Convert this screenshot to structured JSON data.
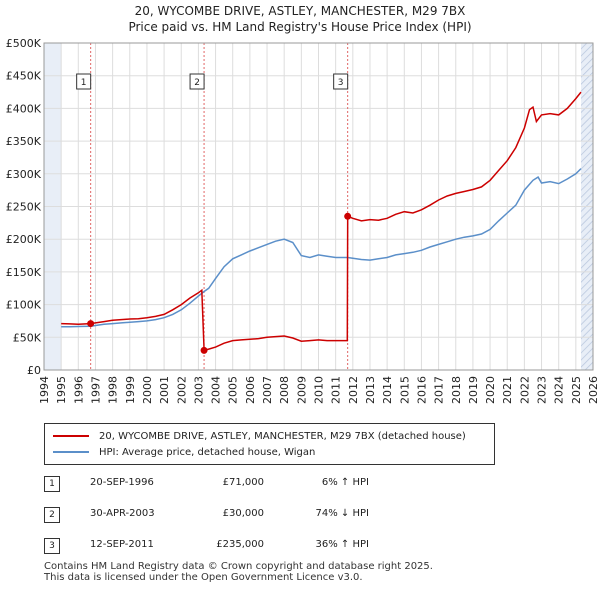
{
  "title": "20, WYCOMBE DRIVE, ASTLEY, MANCHESTER, M29 7BX",
  "subtitle": "Price paid vs. HM Land Registry's House Price Index (HPI)",
  "chart_data": {
    "type": "line",
    "x_range": [
      1994,
      2026
    ],
    "ylim": [
      0,
      500000
    ],
    "y_ticks": [
      {
        "value": 0,
        "label": "£0"
      },
      {
        "value": 50000,
        "label": "£50K"
      },
      {
        "value": 100000,
        "label": "£100K"
      },
      {
        "value": 150000,
        "label": "£150K"
      },
      {
        "value": 200000,
        "label": "£200K"
      },
      {
        "value": 250000,
        "label": "£250K"
      },
      {
        "value": 300000,
        "label": "£300K"
      },
      {
        "value": 350000,
        "label": "£350K"
      },
      {
        "value": 400000,
        "label": "£400K"
      },
      {
        "value": 450000,
        "label": "£450K"
      },
      {
        "value": 500000,
        "label": "£500K"
      }
    ],
    "x_ticks": [
      "1994",
      "1995",
      "1996",
      "1997",
      "1998",
      "1999",
      "2000",
      "2001",
      "2002",
      "2003",
      "2004",
      "2005",
      "2006",
      "2007",
      "2008",
      "2009",
      "2010",
      "2011",
      "2012",
      "2013",
      "2014",
      "2015",
      "2016",
      "2017",
      "2018",
      "2019",
      "2020",
      "2021",
      "2022",
      "2023",
      "2024",
      "2025",
      "2026"
    ],
    "data_start": 1995.0,
    "data_end": 2025.3,
    "series": [
      {
        "name": "20, WYCOMBE DRIVE, ASTLEY, MANCHESTER, M29 7BX (detached house)",
        "color": "#cc0000",
        "points": [
          [
            1995.0,
            71000
          ],
          [
            1995.5,
            70500
          ],
          [
            1996.0,
            70000
          ],
          [
            1996.72,
            71000
          ],
          [
            1997.0,
            72000
          ],
          [
            1997.5,
            74000
          ],
          [
            1998.0,
            76000
          ],
          [
            1998.5,
            77000
          ],
          [
            1999.0,
            78000
          ],
          [
            1999.5,
            78500
          ],
          [
            2000.0,
            80000
          ],
          [
            2000.5,
            82000
          ],
          [
            2001.0,
            85000
          ],
          [
            2001.5,
            92000
          ],
          [
            2002.0,
            100000
          ],
          [
            2002.5,
            110000
          ],
          [
            2003.0,
            118000
          ],
          [
            2003.2,
            122000
          ],
          [
            2003.33,
            30000
          ],
          [
            2003.6,
            32000
          ],
          [
            2004.0,
            35000
          ],
          [
            2004.5,
            41000
          ],
          [
            2005.0,
            45000
          ],
          [
            2005.5,
            46000
          ],
          [
            2006.0,
            47000
          ],
          [
            2006.5,
            48000
          ],
          [
            2007.0,
            50000
          ],
          [
            2007.5,
            51000
          ],
          [
            2008.0,
            52000
          ],
          [
            2008.5,
            49000
          ],
          [
            2009.0,
            44000
          ],
          [
            2009.5,
            45000
          ],
          [
            2010.0,
            46000
          ],
          [
            2010.5,
            45000
          ],
          [
            2011.0,
            45000
          ],
          [
            2011.68,
            45000
          ],
          [
            2011.7,
            235000
          ],
          [
            2012.0,
            232000
          ],
          [
            2012.5,
            228000
          ],
          [
            2013.0,
            230000
          ],
          [
            2013.5,
            229000
          ],
          [
            2014.0,
            232000
          ],
          [
            2014.5,
            238000
          ],
          [
            2015.0,
            242000
          ],
          [
            2015.5,
            240000
          ],
          [
            2016.0,
            245000
          ],
          [
            2016.5,
            252000
          ],
          [
            2017.0,
            260000
          ],
          [
            2017.5,
            266000
          ],
          [
            2018.0,
            270000
          ],
          [
            2018.5,
            273000
          ],
          [
            2019.0,
            276000
          ],
          [
            2019.5,
            280000
          ],
          [
            2020.0,
            290000
          ],
          [
            2020.5,
            305000
          ],
          [
            2021.0,
            320000
          ],
          [
            2021.5,
            340000
          ],
          [
            2022.0,
            370000
          ],
          [
            2022.3,
            398000
          ],
          [
            2022.5,
            402000
          ],
          [
            2022.7,
            380000
          ],
          [
            2023.0,
            390000
          ],
          [
            2023.5,
            392000
          ],
          [
            2024.0,
            390000
          ],
          [
            2024.5,
            400000
          ],
          [
            2025.0,
            415000
          ],
          [
            2025.3,
            425000
          ]
        ]
      },
      {
        "name": "HPI: Average price, detached house, Wigan",
        "color": "#5b8fc9",
        "points": [
          [
            1995.0,
            66000
          ],
          [
            1995.5,
            66000
          ],
          [
            1996.0,
            66500
          ],
          [
            1996.72,
            67000
          ],
          [
            1997.0,
            68000
          ],
          [
            1997.5,
            70000
          ],
          [
            1998.0,
            71000
          ],
          [
            1998.5,
            72000
          ],
          [
            1999.0,
            73000
          ],
          [
            1999.5,
            74000
          ],
          [
            2000.0,
            75000
          ],
          [
            2000.5,
            77000
          ],
          [
            2001.0,
            80000
          ],
          [
            2001.5,
            85000
          ],
          [
            2002.0,
            92000
          ],
          [
            2002.5,
            102000
          ],
          [
            2003.0,
            113000
          ],
          [
            2003.33,
            120000
          ],
          [
            2003.6,
            125000
          ],
          [
            2004.0,
            140000
          ],
          [
            2004.5,
            158000
          ],
          [
            2005.0,
            170000
          ],
          [
            2005.5,
            176000
          ],
          [
            2006.0,
            182000
          ],
          [
            2006.5,
            187000
          ],
          [
            2007.0,
            192000
          ],
          [
            2007.5,
            197000
          ],
          [
            2008.0,
            200000
          ],
          [
            2008.5,
            195000
          ],
          [
            2009.0,
            175000
          ],
          [
            2009.5,
            172000
          ],
          [
            2010.0,
            176000
          ],
          [
            2010.5,
            174000
          ],
          [
            2011.0,
            172000
          ],
          [
            2011.7,
            172000
          ],
          [
            2012.0,
            171000
          ],
          [
            2012.5,
            169000
          ],
          [
            2013.0,
            168000
          ],
          [
            2013.5,
            170000
          ],
          [
            2014.0,
            172000
          ],
          [
            2014.5,
            176000
          ],
          [
            2015.0,
            178000
          ],
          [
            2015.5,
            180000
          ],
          [
            2016.0,
            183000
          ],
          [
            2016.5,
            188000
          ],
          [
            2017.0,
            192000
          ],
          [
            2017.5,
            196000
          ],
          [
            2018.0,
            200000
          ],
          [
            2018.5,
            203000
          ],
          [
            2019.0,
            205000
          ],
          [
            2019.5,
            208000
          ],
          [
            2020.0,
            215000
          ],
          [
            2020.5,
            228000
          ],
          [
            2021.0,
            240000
          ],
          [
            2021.5,
            252000
          ],
          [
            2022.0,
            275000
          ],
          [
            2022.5,
            290000
          ],
          [
            2022.8,
            295000
          ],
          [
            2023.0,
            286000
          ],
          [
            2023.5,
            288000
          ],
          [
            2024.0,
            285000
          ],
          [
            2024.5,
            292000
          ],
          [
            2025.0,
            300000
          ],
          [
            2025.3,
            308000
          ]
        ]
      }
    ],
    "sales": [
      {
        "label": "1",
        "x": 1996.72,
        "price": 71000
      },
      {
        "label": "2",
        "x": 2003.33,
        "price": 30000
      },
      {
        "label": "3",
        "x": 2011.7,
        "price": 235000
      }
    ]
  },
  "legend": {
    "red_label": "20, WYCOMBE DRIVE, ASTLEY, MANCHESTER, M29 7BX (detached house)",
    "blue_label": "HPI: Average price, detached house, Wigan"
  },
  "sales_table": [
    {
      "num": "1",
      "date": "20-SEP-1996",
      "price": "£71,000",
      "hpi": "6% ↑ HPI"
    },
    {
      "num": "2",
      "date": "30-APR-2003",
      "price": "£30,000",
      "hpi": "74% ↓ HPI"
    },
    {
      "num": "3",
      "date": "12-SEP-2011",
      "price": "£235,000",
      "hpi": "36% ↑ HPI"
    }
  ],
  "footer": {
    "line1": "Contains HM Land Registry data © Crown copyright and database right 2025.",
    "line2": "This data is licensed under the Open Government Licence v3.0."
  },
  "colors": {
    "red": "#cc0000",
    "blue": "#5b8fc9",
    "grid": "#dddddd",
    "shade": "#e8eef7"
  }
}
